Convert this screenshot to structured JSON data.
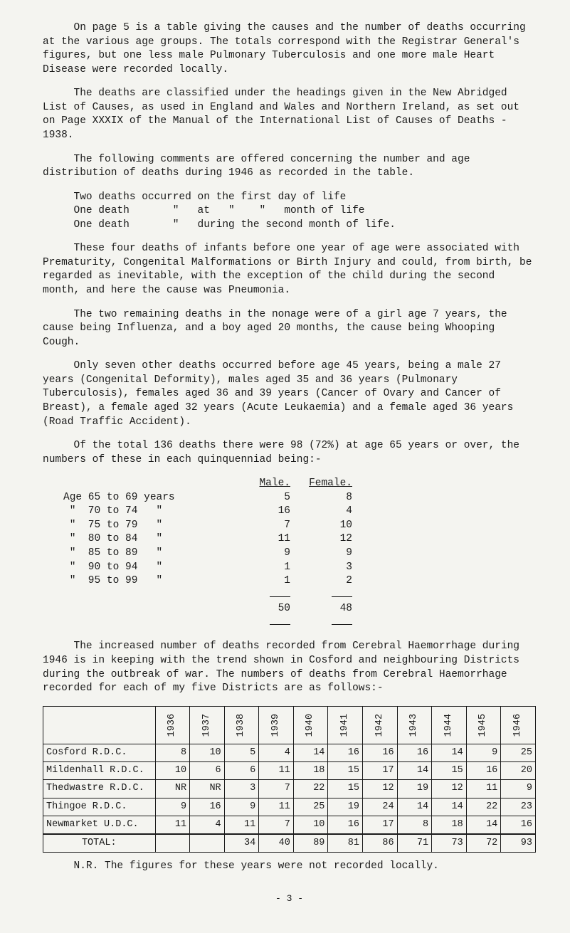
{
  "para1": "On page 5 is a table giving the causes and the number of deaths occurring at the various age groups. The totals correspond with the Registrar General's figures, but one less male Pulmonary Tuberculosis and one more male Heart Disease were recorded locally.",
  "para2": "The deaths are classified under the headings given in the New Abridged List of Causes, as used in England and Wales and Northern Ireland, as set out on Page XXXIX of the Manual of the International List of Causes of Deaths - 1938.",
  "para3": "The following comments are offered concerning the number and age distribution of deaths during 1946 as recorded in the table.",
  "lines1a": "Two deaths occurred on the first day of life",
  "lines1b": "One death       \"   at   \"    \"   month of life",
  "lines1c": "One death       \"   during the second month of life.",
  "para4": "These four deaths of infants before one year of age were associated with Prematurity, Congenital Malformations or Birth Injury and could, from birth, be regarded as inevitable, with the exception of the child during the second month, and here the cause was Pneumonia.",
  "para5": "The two remaining deaths in the nonage were of a girl age 7 years, the cause being Influenza, and a boy aged 20 months, the cause being Whooping Cough.",
  "para6": "Only seven other deaths occurred before age 45 years, being a male 27 years (Congenital Deformity), males aged 35 and 36 years (Pulmonary Tuberculosis), females aged 36 and 39 years (Cancer of Ovary and Cancer of Breast), a female aged 32 years (Acute Leukaemia) and a female aged 36 years (Road Traffic Accident).",
  "para7": "Of the total 136 deaths there were 98 (72%) at age 65 years or over, the numbers of these in each quinquenniad being:-",
  "mf_head_m": "Male.",
  "mf_head_f": "Female.",
  "ages": [
    {
      "label": "Age 65 to 69 years",
      "m": "5",
      "f": "8"
    },
    {
      "label": " \"  70 to 74   \"",
      "m": "16",
      "f": "4"
    },
    {
      "label": " \"  75 to 79   \"",
      "m": "7",
      "f": "10"
    },
    {
      "label": " \"  80 to 84   \"",
      "m": "11",
      "f": "12"
    },
    {
      "label": " \"  85 to 89   \"",
      "m": "9",
      "f": "9"
    },
    {
      "label": " \"  90 to 94   \"",
      "m": "1",
      "f": "3"
    },
    {
      "label": " \"  95 to 99   \"",
      "m": "1",
      "f": "2"
    }
  ],
  "age_total_m": "50",
  "age_total_f": "48",
  "para8": "The increased number of deaths recorded from Cerebral Haemorrhage during 1946 is in keeping with the trend shown in Cosford and neighbouring Districts during the outbreak of war. The numbers of deaths from Cerebral Haemorrhage recorded for each of my five Districts are as follows:-",
  "years": [
    "1936",
    "1937",
    "1938",
    "1939",
    "1940",
    "1941",
    "1942",
    "1943",
    "1944",
    "1945",
    "1946"
  ],
  "rows": [
    {
      "name": "Cosford R.D.C.",
      "v": [
        "8",
        "10",
        "5",
        "4",
        "14",
        "16",
        "16",
        "16",
        "14",
        "9",
        "25"
      ]
    },
    {
      "name": "Mildenhall R.D.C.",
      "v": [
        "10",
        "6",
        "6",
        "11",
        "18",
        "15",
        "17",
        "14",
        "15",
        "16",
        "20"
      ]
    },
    {
      "name": "Thedwastre R.D.C.",
      "v": [
        "NR",
        "NR",
        "3",
        "7",
        "22",
        "15",
        "12",
        "19",
        "12",
        "11",
        "9"
      ]
    },
    {
      "name": "Thingoe R.D.C.",
      "v": [
        "9",
        "16",
        "9",
        "11",
        "25",
        "19",
        "24",
        "14",
        "14",
        "22",
        "23"
      ]
    },
    {
      "name": "Newmarket U.D.C.",
      "v": [
        "11",
        "4",
        "11",
        "7",
        "10",
        "16",
        "17",
        "8",
        "18",
        "14",
        "16"
      ]
    }
  ],
  "total_label": "TOTAL:",
  "totals": [
    "",
    "",
    "34",
    "40",
    "89",
    "81",
    "86",
    "71",
    "73",
    "72",
    "93"
  ],
  "footer": "N.R.  The figures for these years were not recorded locally.",
  "pagenum": "- 3 -"
}
